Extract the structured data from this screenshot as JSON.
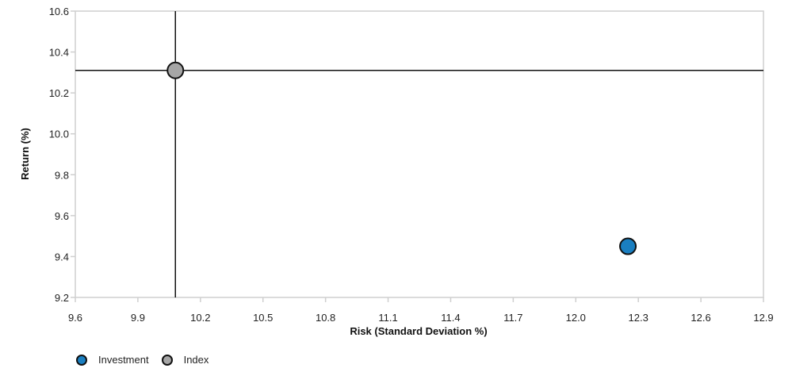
{
  "chart_data": {
    "type": "scatter",
    "title": "",
    "xlabel": "Risk (Standard Deviation %)",
    "ylabel": "Return (%)",
    "xlim": [
      9.6,
      12.9
    ],
    "ylim": [
      9.2,
      10.6
    ],
    "xticks": [
      "9.6",
      "9.9",
      "10.2",
      "10.5",
      "10.8",
      "11.1",
      "11.4",
      "11.7",
      "12.0",
      "12.3",
      "12.6",
      "12.9"
    ],
    "yticks": [
      "9.2",
      "9.4",
      "9.6",
      "9.8",
      "10.0",
      "10.2",
      "10.4",
      "10.6"
    ],
    "grid": false,
    "crosshair": {
      "x": 10.08,
      "y": 10.31
    },
    "legend_position": "bottom-left",
    "series": [
      {
        "name": "Investment",
        "color": "#1a7fc1",
        "points": [
          {
            "x": 12.25,
            "y": 9.45
          }
        ]
      },
      {
        "name": "Index",
        "color": "#a6a6a6",
        "points": [
          {
            "x": 10.08,
            "y": 10.31
          }
        ]
      }
    ]
  }
}
